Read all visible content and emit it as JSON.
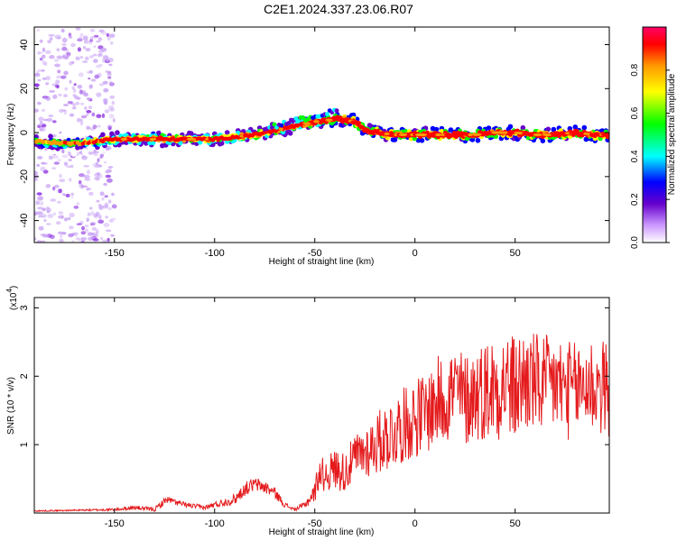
{
  "title": "C2E1.2024.337.23.06.R07",
  "chart_data": [
    {
      "type": "heatmap",
      "xlabel": "Height of straight line (km)",
      "ylabel": "Frequency (Hz)",
      "xlim": [
        -190,
        97
      ],
      "ylim": [
        -50,
        48
      ],
      "x_ticks": [
        -150,
        -100,
        -50,
        0,
        50
      ],
      "y_ticks": [
        -40,
        -20,
        0,
        20,
        40
      ],
      "colorbar": {
        "label": "Normalized spectral amplitude",
        "range": [
          0.0,
          1.0
        ],
        "ticks": [
          "0.0",
          "0.2",
          "0.4",
          "0.6",
          "0.8"
        ],
        "colors": [
          "#ffffff",
          "#cc99ff",
          "#6600cc",
          "#0000ff",
          "#00ffff",
          "#00ff00",
          "#ffff00",
          "#ff9900",
          "#ff0000",
          "#ff0066"
        ]
      },
      "ridge": {
        "x": [
          -190,
          -170,
          -150,
          -130,
          -110,
          -100,
          -90,
          -80,
          -70,
          -60,
          -50,
          -40,
          -35,
          -30,
          -25,
          -20,
          -10,
          0,
          10,
          20,
          30,
          40,
          50,
          60,
          70,
          80,
          90,
          97
        ],
        "freq": [
          -4,
          -5,
          -3,
          -3,
          -3,
          -3,
          -2,
          -1,
          1,
          3,
          5,
          6,
          6,
          5,
          1,
          0,
          -1,
          -1,
          -1,
          -1,
          -1,
          0,
          0,
          -1,
          -1,
          0,
          -1,
          -1
        ],
        "amplitude": [
          0.3,
          0.35,
          0.5,
          0.65,
          0.55,
          0.5,
          0.55,
          0.6,
          0.6,
          0.65,
          0.7,
          0.85,
          0.9,
          0.85,
          0.8,
          0.9,
          0.85,
          0.9,
          0.85,
          0.9,
          0.85,
          0.9,
          0.95,
          0.85,
          0.9,
          0.9,
          0.85,
          0.8
        ]
      },
      "scatter_region": {
        "x_range": [
          -190,
          -150
        ],
        "freq_range": [
          -50,
          48
        ],
        "amplitude": 0.2
      }
    },
    {
      "type": "line",
      "xlabel": "Height of straight line (km)",
      "ylabel": "SNR (10 * v/v)",
      "exponent_label": "(x10",
      "exponent_power": "4",
      "exponent_close": ")",
      "xlim": [
        -190,
        97
      ],
      "ylim": [
        0,
        3.15
      ],
      "x_ticks": [
        -150,
        -100,
        -50,
        0,
        50
      ],
      "y_ticks": [
        1,
        2,
        3
      ],
      "series": [
        {
          "color": "#e41a1c",
          "x": [
            -190,
            -170,
            -150,
            -140,
            -130,
            -127,
            -124,
            -115,
            -105,
            -90,
            -85,
            -80,
            -75,
            -70,
            -65,
            -60,
            -55,
            -50,
            -48,
            -45,
            -40,
            -35,
            -30,
            -25,
            -20,
            -15,
            -10,
            -5,
            0,
            5,
            10,
            15,
            20,
            25,
            30,
            35,
            40,
            45,
            50,
            55,
            60,
            65,
            70,
            75,
            80,
            85,
            90,
            97
          ],
          "y": [
            0.03,
            0.04,
            0.05,
            0.08,
            0.05,
            0.12,
            0.2,
            0.12,
            0.08,
            0.2,
            0.35,
            0.42,
            0.38,
            0.3,
            0.12,
            0.05,
            0.12,
            0.3,
            0.6,
            0.55,
            0.65,
            0.6,
            0.8,
            0.9,
            1.0,
            1.1,
            1.2,
            1.3,
            1.4,
            1.45,
            1.6,
            1.7,
            1.8,
            1.65,
            1.75,
            1.8,
            1.85,
            1.9,
            1.8,
            1.95,
            1.9,
            1.85,
            1.9,
            1.8,
            1.8,
            1.9,
            1.85,
            1.8
          ],
          "noise": [
            0.01,
            0.01,
            0.02,
            0.03,
            0.03,
            0.05,
            0.05,
            0.04,
            0.03,
            0.08,
            0.1,
            0.1,
            0.1,
            0.08,
            0.04,
            0.02,
            0.05,
            0.15,
            0.25,
            0.25,
            0.3,
            0.3,
            0.35,
            0.4,
            0.45,
            0.5,
            0.55,
            0.55,
            0.6,
            0.6,
            0.65,
            0.7,
            0.7,
            0.7,
            0.7,
            0.75,
            0.8,
            0.8,
            0.8,
            0.8,
            0.75,
            0.75,
            0.75,
            0.75,
            0.7,
            0.75,
            0.75,
            0.7
          ]
        }
      ]
    }
  ]
}
